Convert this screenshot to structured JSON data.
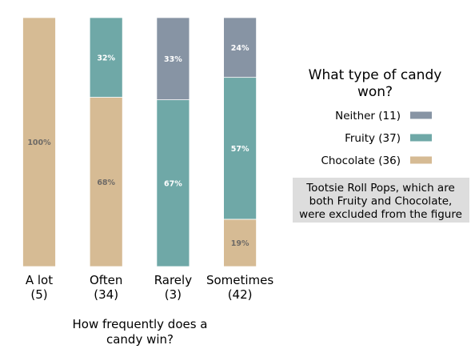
{
  "chart_data": {
    "type": "bar",
    "stacked": true,
    "normalized_percent": true,
    "categories": [
      "A lot",
      "Often",
      "Rarely",
      "Sometimes"
    ],
    "category_counts": [
      "(5)",
      "(34)",
      "(3)",
      "(42)"
    ],
    "series": [
      {
        "name": "Chocolate (36)",
        "values": [
          100,
          68,
          0,
          19
        ],
        "color": "#d6bb94"
      },
      {
        "name": "Fruity (37)",
        "values": [
          0,
          32,
          67,
          57
        ],
        "color": "#6fa8a7"
      },
      {
        "name": "Neither (11)",
        "values": [
          0,
          0,
          33,
          24
        ],
        "color": "#8794a4"
      }
    ],
    "value_labels": [
      [
        "100%",
        "",
        ""
      ],
      [
        "68%",
        "32%",
        ""
      ],
      [
        "",
        "67%",
        "33%"
      ],
      [
        "19%",
        "57%",
        "24%"
      ]
    ],
    "xlabel": "How frequently does a\ncandy win?",
    "ylabel": "",
    "ylim": [
      0,
      100
    ],
    "y_axis_visible": false,
    "grid": false,
    "legend": {
      "title": "What type of candy\nwon?",
      "placement": "right",
      "order": [
        "Neither (11)",
        "Fruity (37)",
        "Chocolate (36)"
      ]
    },
    "annotation": "Tootsie Roll Pops, which are\nboth Fruity and Chocolate,\nwere excluded from the figure",
    "annotation_bg": "#dddddd",
    "label_colors": {
      "on_light": "#6e6a66",
      "on_dark": "#ffffff"
    }
  }
}
